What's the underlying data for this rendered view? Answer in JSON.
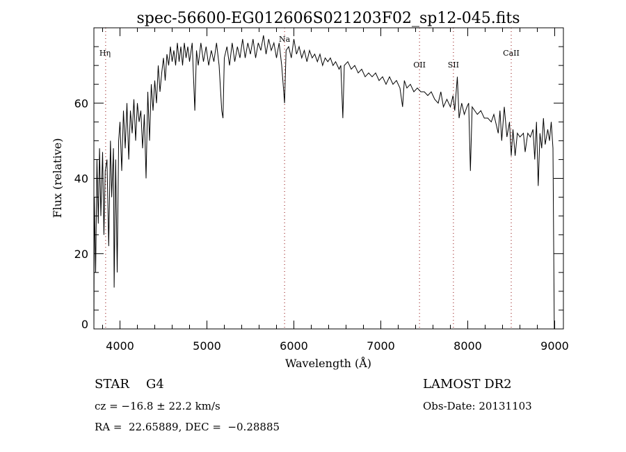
{
  "chart_data": {
    "type": "line",
    "title": "spec-56600-EG012606S021203F02_sp12-045.fits",
    "xlabel": "Wavelength (Å)",
    "ylabel": "Flux (relative)",
    "xlim": [
      3700,
      9100
    ],
    "ylim": [
      0,
      80
    ],
    "xticks": [
      4000,
      5000,
      6000,
      7000,
      8000,
      9000
    ],
    "yticks": [
      0,
      20,
      40,
      60
    ],
    "grid": false,
    "line_color": "#000000",
    "marker_color": "#8b0000",
    "lines": [
      {
        "label": "Hη",
        "wavelength": 3835
      },
      {
        "label": "Na",
        "wavelength": 5893
      },
      {
        "label": "OII",
        "wavelength": 7445
      },
      {
        "label": "SII",
        "wavelength": 7835
      },
      {
        "label": "CaII",
        "wavelength": 8500
      }
    ],
    "series": [
      {
        "name": "flux",
        "points": [
          [
            3700,
            0
          ],
          [
            3705,
            35
          ],
          [
            3720,
            15
          ],
          [
            3735,
            45
          ],
          [
            3750,
            28
          ],
          [
            3765,
            48
          ],
          [
            3780,
            30
          ],
          [
            3800,
            47
          ],
          [
            3815,
            25
          ],
          [
            3830,
            42
          ],
          [
            3850,
            45
          ],
          [
            3870,
            22
          ],
          [
            3890,
            50
          ],
          [
            3905,
            35
          ],
          [
            3925,
            48
          ],
          [
            3933,
            11
          ],
          [
            3950,
            45
          ],
          [
            3968,
            15
          ],
          [
            3985,
            50
          ],
          [
            4000,
            55
          ],
          [
            4020,
            42
          ],
          [
            4040,
            58
          ],
          [
            4060,
            48
          ],
          [
            4080,
            60
          ],
          [
            4101,
            45
          ],
          [
            4120,
            58
          ],
          [
            4140,
            52
          ],
          [
            4160,
            61
          ],
          [
            4180,
            50
          ],
          [
            4200,
            60
          ],
          [
            4220,
            55
          ],
          [
            4240,
            58
          ],
          [
            4260,
            48
          ],
          [
            4280,
            57
          ],
          [
            4300,
            40
          ],
          [
            4320,
            63
          ],
          [
            4340,
            50
          ],
          [
            4360,
            65
          ],
          [
            4380,
            58
          ],
          [
            4400,
            66
          ],
          [
            4420,
            60
          ],
          [
            4440,
            70
          ],
          [
            4460,
            63
          ],
          [
            4480,
            68
          ],
          [
            4500,
            72
          ],
          [
            4520,
            66
          ],
          [
            4540,
            73
          ],
          [
            4560,
            70
          ],
          [
            4580,
            75
          ],
          [
            4600,
            71
          ],
          [
            4620,
            74
          ],
          [
            4640,
            70
          ],
          [
            4660,
            76
          ],
          [
            4680,
            71
          ],
          [
            4700,
            75
          ],
          [
            4720,
            70
          ],
          [
            4740,
            76
          ],
          [
            4760,
            72
          ],
          [
            4780,
            75
          ],
          [
            4800,
            71
          ],
          [
            4830,
            76
          ],
          [
            4861,
            58
          ],
          [
            4880,
            74
          ],
          [
            4900,
            70
          ],
          [
            4930,
            76
          ],
          [
            4960,
            71
          ],
          [
            4990,
            75
          ],
          [
            5020,
            70
          ],
          [
            5050,
            74
          ],
          [
            5080,
            71
          ],
          [
            5110,
            76
          ],
          [
            5140,
            70
          ],
          [
            5170,
            58
          ],
          [
            5185,
            56
          ],
          [
            5200,
            72
          ],
          [
            5230,
            75
          ],
          [
            5260,
            70
          ],
          [
            5290,
            76
          ],
          [
            5320,
            71
          ],
          [
            5350,
            75
          ],
          [
            5380,
            72
          ],
          [
            5410,
            77
          ],
          [
            5440,
            72
          ],
          [
            5470,
            76
          ],
          [
            5500,
            73
          ],
          [
            5530,
            77
          ],
          [
            5560,
            72
          ],
          [
            5590,
            76
          ],
          [
            5620,
            74
          ],
          [
            5650,
            78
          ],
          [
            5680,
            73
          ],
          [
            5710,
            77
          ],
          [
            5740,
            74
          ],
          [
            5770,
            76
          ],
          [
            5800,
            72
          ],
          [
            5830,
            76
          ],
          [
            5860,
            70
          ],
          [
            5880,
            64
          ],
          [
            5893,
            60
          ],
          [
            5910,
            74
          ],
          [
            5940,
            75
          ],
          [
            5970,
            72
          ],
          [
            6000,
            77
          ],
          [
            6030,
            73
          ],
          [
            6060,
            75
          ],
          [
            6090,
            72
          ],
          [
            6120,
            74
          ],
          [
            6150,
            71
          ],
          [
            6180,
            74
          ],
          [
            6210,
            72
          ],
          [
            6240,
            73
          ],
          [
            6270,
            71
          ],
          [
            6300,
            73
          ],
          [
            6330,
            70
          ],
          [
            6360,
            72
          ],
          [
            6390,
            71
          ],
          [
            6420,
            72
          ],
          [
            6450,
            70
          ],
          [
            6480,
            71
          ],
          [
            6520,
            69
          ],
          [
            6540,
            70
          ],
          [
            6563,
            56
          ],
          [
            6580,
            70
          ],
          [
            6620,
            71
          ],
          [
            6660,
            69
          ],
          [
            6700,
            70
          ],
          [
            6740,
            68
          ],
          [
            6780,
            69
          ],
          [
            6820,
            67
          ],
          [
            6860,
            68
          ],
          [
            6900,
            67
          ],
          [
            6940,
            68
          ],
          [
            6980,
            66
          ],
          [
            7020,
            67
          ],
          [
            7060,
            65
          ],
          [
            7100,
            67
          ],
          [
            7140,
            65
          ],
          [
            7180,
            66
          ],
          [
            7220,
            64
          ],
          [
            7250,
            59
          ],
          [
            7270,
            66
          ],
          [
            7300,
            64
          ],
          [
            7340,
            65
          ],
          [
            7380,
            63
          ],
          [
            7420,
            64
          ],
          [
            7460,
            63
          ],
          [
            7500,
            63
          ],
          [
            7540,
            62
          ],
          [
            7580,
            63
          ],
          [
            7620,
            61
          ],
          [
            7660,
            60
          ],
          [
            7690,
            63
          ],
          [
            7720,
            59
          ],
          [
            7760,
            61
          ],
          [
            7800,
            59
          ],
          [
            7830,
            62
          ],
          [
            7850,
            58
          ],
          [
            7880,
            67
          ],
          [
            7900,
            56
          ],
          [
            7930,
            60
          ],
          [
            7960,
            57
          ],
          [
            7990,
            59
          ],
          [
            8010,
            60
          ],
          [
            8030,
            42
          ],
          [
            8050,
            59
          ],
          [
            8080,
            58
          ],
          [
            8110,
            57
          ],
          [
            8150,
            58
          ],
          [
            8190,
            56
          ],
          [
            8230,
            56
          ],
          [
            8270,
            55
          ],
          [
            8300,
            57
          ],
          [
            8330,
            54
          ],
          [
            8350,
            52
          ],
          [
            8370,
            58
          ],
          [
            8390,
            50
          ],
          [
            8420,
            59
          ],
          [
            8450,
            51
          ],
          [
            8480,
            55
          ],
          [
            8500,
            46
          ],
          [
            8520,
            53
          ],
          [
            8545,
            46
          ],
          [
            8570,
            52
          ],
          [
            8600,
            51
          ],
          [
            8640,
            52
          ],
          [
            8660,
            47
          ],
          [
            8690,
            52
          ],
          [
            8720,
            51
          ],
          [
            8750,
            53
          ],
          [
            8770,
            45
          ],
          [
            8790,
            55
          ],
          [
            8810,
            38
          ],
          [
            8830,
            52
          ],
          [
            8850,
            48
          ],
          [
            8870,
            56
          ],
          [
            8890,
            49
          ],
          [
            8920,
            53
          ],
          [
            8940,
            50
          ],
          [
            8960,
            55
          ],
          [
            8980,
            48
          ],
          [
            8995,
            0
          ]
        ]
      }
    ]
  },
  "info": {
    "class": "STAR",
    "subclass": "G4",
    "survey": "LAMOST DR2",
    "cz": "cz = −16.8 ± 22.2 km/s",
    "obs_date": "Obs-Date: 20131103",
    "coords": "RA =  22.65889, DEC =  −0.28885"
  }
}
